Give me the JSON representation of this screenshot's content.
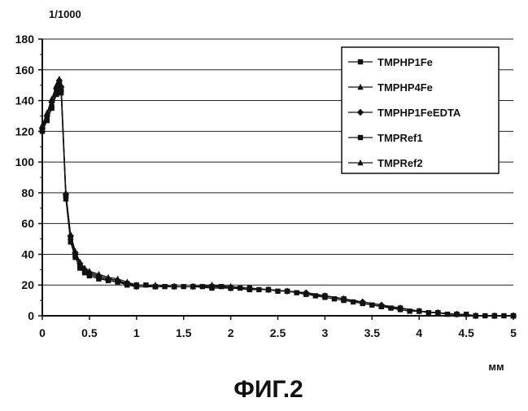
{
  "chart_data": {
    "type": "line",
    "y_unit_label": "1/1000",
    "x_unit_label": "мм",
    "caption": "ФИГ.2",
    "xlim": [
      0,
      5
    ],
    "ylim": [
      0,
      180
    ],
    "xticks": [
      "0",
      "0.5",
      "1",
      "1.5",
      "2",
      "2.5",
      "3",
      "3.5",
      "4",
      "4.5",
      "5"
    ],
    "yticks": [
      "0",
      "20",
      "40",
      "60",
      "80",
      "100",
      "120",
      "140",
      "160",
      "180"
    ],
    "grid": "horizontal",
    "legend_position": "top-right",
    "series": [
      {
        "name": "TMPHP1Fe",
        "marker": "square",
        "x": [
          0,
          0.05,
          0.1,
          0.15,
          0.18,
          0.2,
          0.25,
          0.3,
          0.35,
          0.4,
          0.45,
          0.5,
          0.6,
          0.7,
          0.8,
          0.9,
          1.0,
          1.1,
          1.2,
          1.3,
          1.4,
          1.5,
          1.6,
          1.7,
          1.8,
          1.9,
          2.0,
          2.1,
          2.2,
          2.3,
          2.4,
          2.5,
          2.6,
          2.7,
          2.8,
          2.9,
          3.0,
          3.1,
          3.2,
          3.3,
          3.4,
          3.5,
          3.6,
          3.7,
          3.8,
          3.9,
          4.0,
          4.1,
          4.2,
          4.3,
          4.4,
          4.5,
          4.6,
          4.7,
          4.8,
          4.9,
          5.0
        ],
        "y": [
          121,
          128,
          136,
          146,
          152,
          147,
          78,
          50,
          40,
          33,
          29,
          27,
          25,
          23,
          22,
          21,
          20,
          20,
          19,
          19,
          19,
          19,
          19,
          19,
          19,
          19,
          18,
          18,
          18,
          17,
          17,
          16,
          16,
          15,
          14,
          13,
          12,
          11,
          10,
          9,
          8,
          7,
          6,
          5,
          4,
          3,
          3,
          2,
          2,
          1,
          1,
          1,
          0,
          0,
          0,
          0,
          0
        ]
      },
      {
        "name": "TMPHP4Fe",
        "marker": "triangle",
        "x": [
          0,
          0.05,
          0.1,
          0.15,
          0.18,
          0.2,
          0.25,
          0.3,
          0.35,
          0.4,
          0.45,
          0.5,
          0.6,
          0.7,
          0.8,
          0.9,
          1.0,
          1.2,
          1.4,
          1.6,
          1.8,
          2.0,
          2.2,
          2.4,
          2.6,
          2.8,
          3.0,
          3.2,
          3.4,
          3.6,
          3.8,
          4.0,
          4.2,
          4.4,
          4.6,
          4.8,
          5.0
        ],
        "y": [
          124,
          132,
          141,
          150,
          154,
          150,
          80,
          53,
          42,
          35,
          31,
          29,
          27,
          25,
          24,
          22,
          20,
          20,
          19,
          19,
          20,
          19,
          18,
          17,
          16,
          15,
          13,
          11,
          9,
          7,
          5,
          3,
          2,
          1,
          0,
          0,
          0
        ]
      },
      {
        "name": "TMPHP1FeEDTA",
        "marker": "diamond",
        "x": [
          0,
          0.05,
          0.1,
          0.15,
          0.18,
          0.2,
          0.25,
          0.3,
          0.35,
          0.4,
          0.45,
          0.5,
          0.6,
          0.7,
          0.8,
          0.9,
          1.0,
          1.2,
          1.4,
          1.6,
          1.8,
          2.0,
          2.2,
          2.4,
          2.6,
          2.8,
          3.0,
          3.2,
          3.4,
          3.6,
          3.8,
          4.0,
          4.2,
          4.4,
          4.6,
          4.8,
          5.0
        ],
        "y": [
          122,
          130,
          139,
          148,
          153,
          149,
          79,
          52,
          41,
          34,
          30,
          28,
          26,
          24,
          23,
          21,
          19,
          19,
          19,
          19,
          19,
          18,
          18,
          17,
          16,
          15,
          13,
          11,
          9,
          7,
          5,
          3,
          2,
          1,
          0,
          0,
          0
        ]
      },
      {
        "name": "TMPRef1",
        "marker": "square",
        "x": [
          0,
          0.05,
          0.1,
          0.15,
          0.18,
          0.2,
          0.25,
          0.3,
          0.35,
          0.4,
          0.45,
          0.5,
          0.6,
          0.7,
          0.8,
          0.9,
          1.0,
          1.2,
          1.4,
          1.6,
          1.8,
          2.0,
          2.2,
          2.4,
          2.6,
          2.8,
          3.0,
          3.2,
          3.4,
          3.6,
          3.8,
          4.0,
          4.2,
          4.4,
          4.6,
          4.8,
          5.0
        ],
        "y": [
          120,
          127,
          135,
          144,
          150,
          145,
          76,
          48,
          38,
          31,
          28,
          26,
          24,
          23,
          22,
          20,
          19,
          19,
          19,
          19,
          18,
          18,
          17,
          17,
          16,
          14,
          13,
          11,
          8,
          6,
          5,
          3,
          2,
          1,
          0,
          0,
          0
        ]
      },
      {
        "name": "TMPRef2",
        "marker": "triangle",
        "x": [
          0,
          0.05,
          0.1,
          0.15,
          0.18,
          0.2,
          0.25,
          0.3,
          0.35,
          0.4,
          0.45,
          0.5,
          0.6,
          0.7,
          0.8,
          0.9,
          1.0,
          1.2,
          1.4,
          1.6,
          1.8,
          2.0,
          2.2,
          2.4,
          2.6,
          2.8,
          3.0,
          3.2,
          3.4,
          3.6,
          3.8,
          4.0,
          4.2,
          4.4,
          4.6,
          4.8,
          5.0
        ],
        "y": [
          123,
          131,
          140,
          149,
          153,
          148,
          79,
          51,
          40,
          34,
          30,
          28,
          26,
          24,
          23,
          21,
          19,
          19,
          19,
          19,
          20,
          19,
          18,
          17,
          16,
          15,
          13,
          11,
          9,
          7,
          5,
          3,
          2,
          1,
          0,
          0,
          0
        ]
      }
    ]
  }
}
